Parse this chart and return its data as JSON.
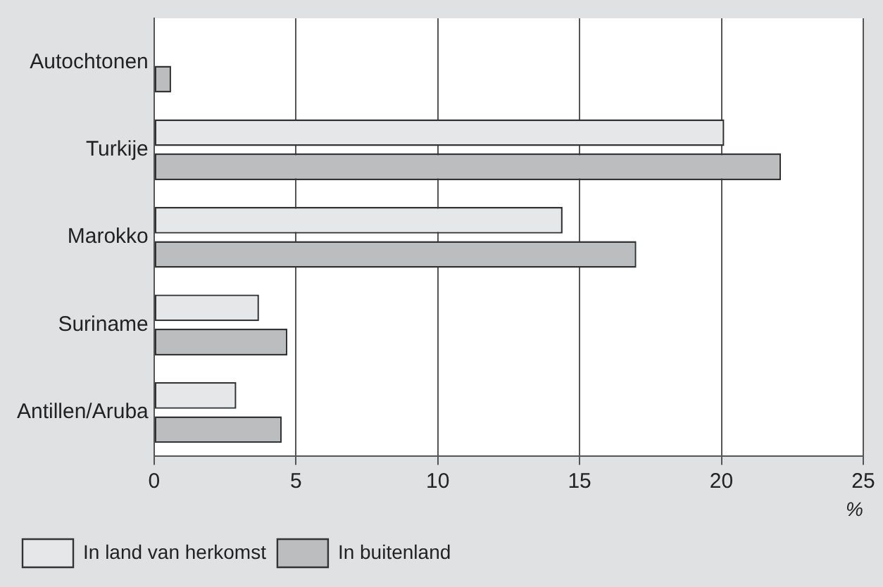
{
  "chart_data": {
    "type": "bar",
    "orientation": "horizontal",
    "categories": [
      "Autochtonen",
      "Turkije",
      "Marokko",
      "Suriname",
      "Antillen/Aruba"
    ],
    "xlabel": "%",
    "series": [
      {
        "name": "In land van herkomst",
        "color": "#e6e7e9",
        "values": [
          null,
          20.1,
          14.4,
          3.7,
          2.9
        ]
      },
      {
        "name": "In buitenland",
        "color": "#bcbdbf",
        "values": [
          0.6,
          22.1,
          17.0,
          4.7,
          4.5
        ]
      }
    ],
    "xlim": [
      0,
      25
    ],
    "xticks": [
      0,
      5,
      10,
      15,
      20,
      25
    ],
    "grid": "x",
    "legend": "bottom left"
  }
}
